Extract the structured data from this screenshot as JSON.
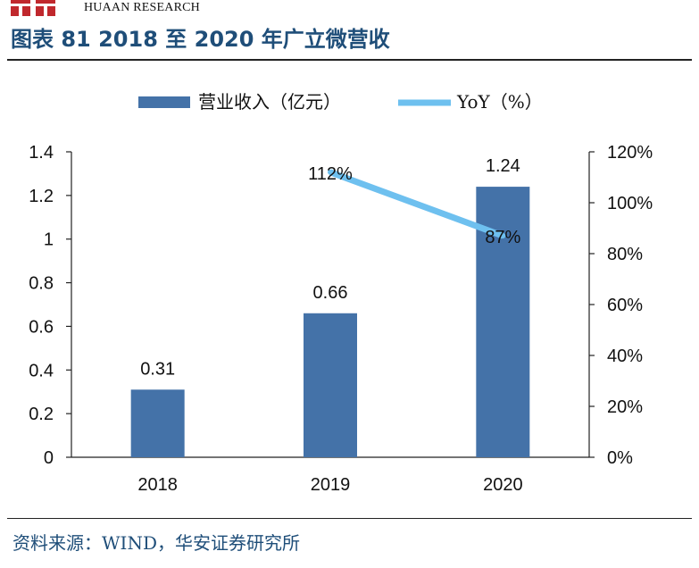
{
  "header": {
    "brand": "HUAAN RESEARCH",
    "figure_title": "图表 81 2018 至 2020 年广立微营收"
  },
  "footer": {
    "source": "资料来源：WIND，华安证券研究所"
  },
  "colors": {
    "bar": "#4472a8",
    "line": "#6ec0ef",
    "title": "#1f4e79",
    "logo": "#c0282d"
  },
  "chart_data": {
    "type": "bar",
    "categories": [
      "2018",
      "2019",
      "2020"
    ],
    "series": [
      {
        "name": "营业收入（亿元）",
        "type": "bar",
        "axis": "left",
        "values": [
          0.31,
          0.66,
          1.24
        ]
      },
      {
        "name": "YoY（%）",
        "type": "line",
        "axis": "right",
        "values": [
          null,
          112,
          87
        ]
      }
    ],
    "bar_labels": [
      "0.31",
      "0.66",
      "1.24"
    ],
    "line_labels": [
      "",
      "112%",
      "87%"
    ],
    "y_left": {
      "min": 0,
      "max": 1.4,
      "ticks": [
        "0",
        "0.2",
        "0.4",
        "0.6",
        "0.8",
        "1",
        "1.2",
        "1.4"
      ]
    },
    "y_right": {
      "min": 0,
      "max": 120,
      "ticks": [
        "0%",
        "20%",
        "40%",
        "60%",
        "80%",
        "100%",
        "120%"
      ]
    },
    "legend_position": "top-center",
    "grid": false
  }
}
